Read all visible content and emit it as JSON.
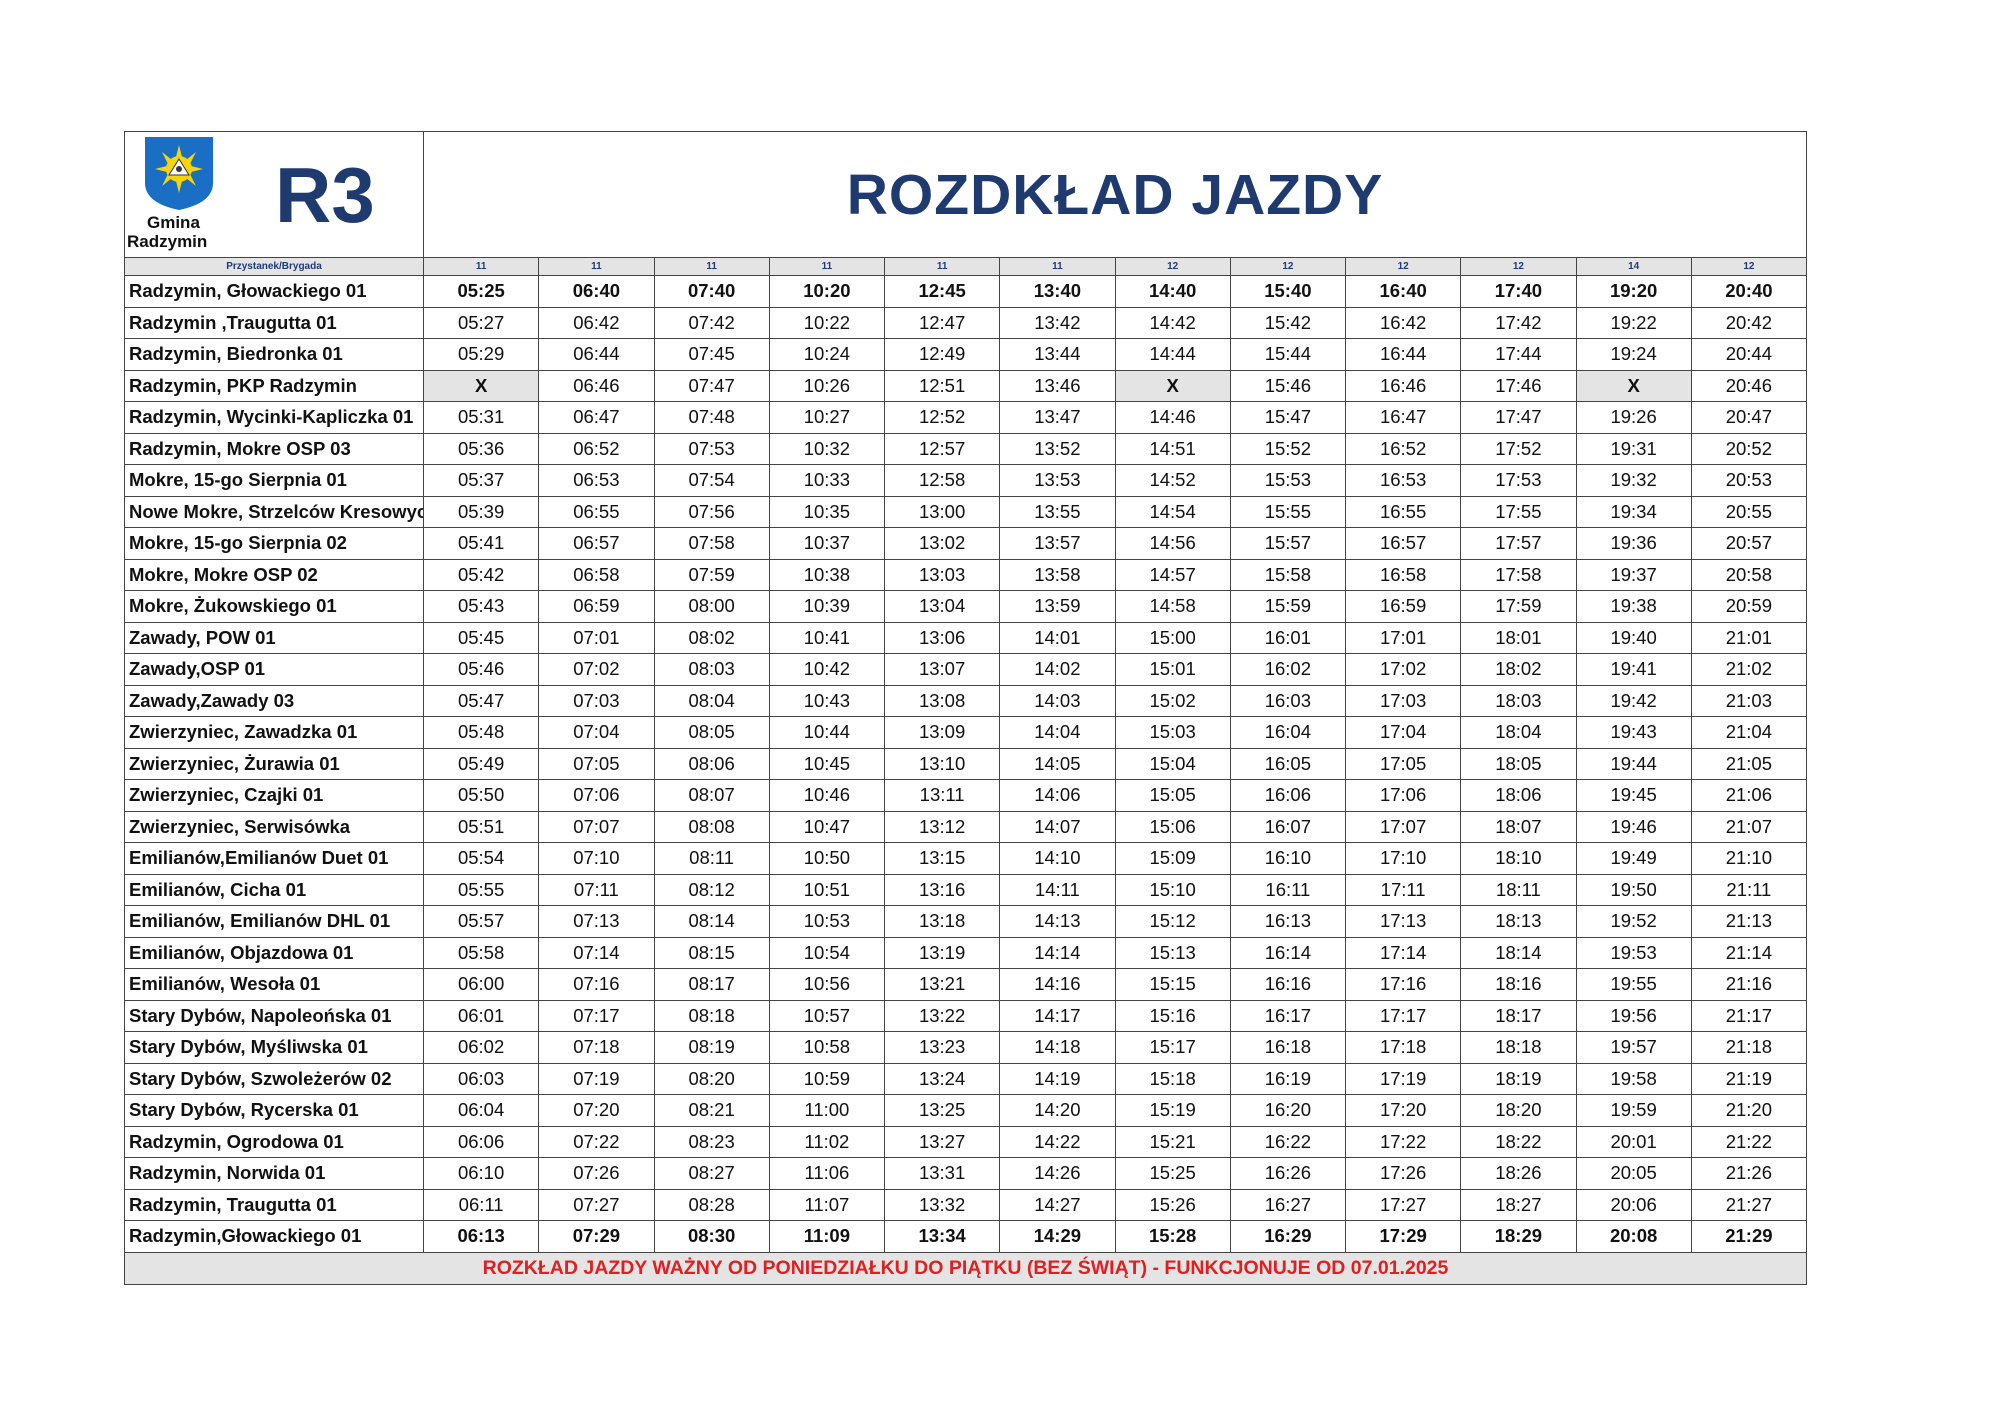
{
  "logo": {
    "line1": "Gmina",
    "line2": "Radzymin"
  },
  "route": "R3",
  "title": "ROZDKŁAD JAZDY",
  "table": {
    "header": "Przystanek/Brygada",
    "brigades": [
      "11",
      "11",
      "11",
      "11",
      "11",
      "11",
      "12",
      "12",
      "12",
      "12",
      "14",
      "12"
    ],
    "rows": [
      {
        "stop": "Radzymin, Głowackiego 01",
        "times": [
          "05:25",
          "06:40",
          "07:40",
          "10:20",
          "12:45",
          "13:40",
          "14:40",
          "15:40",
          "16:40",
          "17:40",
          "19:20",
          "20:40"
        ]
      },
      {
        "stop": "Radzymin ,Traugutta 01",
        "times": [
          "05:27",
          "06:42",
          "07:42",
          "10:22",
          "12:47",
          "13:42",
          "14:42",
          "15:42",
          "16:42",
          "17:42",
          "19:22",
          "20:42"
        ]
      },
      {
        "stop": "Radzymin, Biedronka 01",
        "times": [
          "05:29",
          "06:44",
          "07:45",
          "10:24",
          "12:49",
          "13:44",
          "14:44",
          "15:44",
          "16:44",
          "17:44",
          "19:24",
          "20:44"
        ]
      },
      {
        "stop": "Radzymin, PKP Radzymin",
        "times": [
          "X",
          "06:46",
          "07:47",
          "10:26",
          "12:51",
          "13:46",
          "X",
          "15:46",
          "16:46",
          "17:46",
          "X",
          "20:46"
        ]
      },
      {
        "stop": "Radzymin, Wycinki-Kapliczka 01",
        "times": [
          "05:31",
          "06:47",
          "07:48",
          "10:27",
          "12:52",
          "13:47",
          "14:46",
          "15:47",
          "16:47",
          "17:47",
          "19:26",
          "20:47"
        ]
      },
      {
        "stop": "Radzymin, Mokre OSP 03",
        "times": [
          "05:36",
          "06:52",
          "07:53",
          "10:32",
          "12:57",
          "13:52",
          "14:51",
          "15:52",
          "16:52",
          "17:52",
          "19:31",
          "20:52"
        ]
      },
      {
        "stop": "Mokre, 15-go Sierpnia 01",
        "times": [
          "05:37",
          "06:53",
          "07:54",
          "10:33",
          "12:58",
          "13:53",
          "14:52",
          "15:53",
          "16:53",
          "17:53",
          "19:32",
          "20:53"
        ]
      },
      {
        "stop": "Nowe Mokre, Strzelców Kresowyc",
        "times": [
          "05:39",
          "06:55",
          "07:56",
          "10:35",
          "13:00",
          "13:55",
          "14:54",
          "15:55",
          "16:55",
          "17:55",
          "19:34",
          "20:55"
        ]
      },
      {
        "stop": "Mokre, 15-go Sierpnia 02",
        "times": [
          "05:41",
          "06:57",
          "07:58",
          "10:37",
          "13:02",
          "13:57",
          "14:56",
          "15:57",
          "16:57",
          "17:57",
          "19:36",
          "20:57"
        ]
      },
      {
        "stop": "Mokre, Mokre OSP 02",
        "times": [
          "05:42",
          "06:58",
          "07:59",
          "10:38",
          "13:03",
          "13:58",
          "14:57",
          "15:58",
          "16:58",
          "17:58",
          "19:37",
          "20:58"
        ]
      },
      {
        "stop": "Mokre, Żukowskiego 01",
        "times": [
          "05:43",
          "06:59",
          "08:00",
          "10:39",
          "13:04",
          "13:59",
          "14:58",
          "15:59",
          "16:59",
          "17:59",
          "19:38",
          "20:59"
        ]
      },
      {
        "stop": "Zawady, POW 01",
        "times": [
          "05:45",
          "07:01",
          "08:02",
          "10:41",
          "13:06",
          "14:01",
          "15:00",
          "16:01",
          "17:01",
          "18:01",
          "19:40",
          "21:01"
        ]
      },
      {
        "stop": "Zawady,OSP 01",
        "times": [
          "05:46",
          "07:02",
          "08:03",
          "10:42",
          "13:07",
          "14:02",
          "15:01",
          "16:02",
          "17:02",
          "18:02",
          "19:41",
          "21:02"
        ]
      },
      {
        "stop": "Zawady,Zawady 03",
        "times": [
          "05:47",
          "07:03",
          "08:04",
          "10:43",
          "13:08",
          "14:03",
          "15:02",
          "16:03",
          "17:03",
          "18:03",
          "19:42",
          "21:03"
        ]
      },
      {
        "stop": "Zwierzyniec, Zawadzka 01",
        "times": [
          "05:48",
          "07:04",
          "08:05",
          "10:44",
          "13:09",
          "14:04",
          "15:03",
          "16:04",
          "17:04",
          "18:04",
          "19:43",
          "21:04"
        ]
      },
      {
        "stop": "Zwierzyniec, Żurawia 01",
        "times": [
          "05:49",
          "07:05",
          "08:06",
          "10:45",
          "13:10",
          "14:05",
          "15:04",
          "16:05",
          "17:05",
          "18:05",
          "19:44",
          "21:05"
        ]
      },
      {
        "stop": "Zwierzyniec, Czajki 01",
        "times": [
          "05:50",
          "07:06",
          "08:07",
          "10:46",
          "13:11",
          "14:06",
          "15:05",
          "16:06",
          "17:06",
          "18:06",
          "19:45",
          "21:06"
        ]
      },
      {
        "stop": "Zwierzyniec, Serwisówka",
        "times": [
          "05:51",
          "07:07",
          "08:08",
          "10:47",
          "13:12",
          "14:07",
          "15:06",
          "16:07",
          "17:07",
          "18:07",
          "19:46",
          "21:07"
        ]
      },
      {
        "stop": "Emilianów,Emilianów Duet 01",
        "times": [
          "05:54",
          "07:10",
          "08:11",
          "10:50",
          "13:15",
          "14:10",
          "15:09",
          "16:10",
          "17:10",
          "18:10",
          "19:49",
          "21:10"
        ]
      },
      {
        "stop": "Emilianów, Cicha 01",
        "times": [
          "05:55",
          "07:11",
          "08:12",
          "10:51",
          "13:16",
          "14:11",
          "15:10",
          "16:11",
          "17:11",
          "18:11",
          "19:50",
          "21:11"
        ]
      },
      {
        "stop": "Emilianów, Emilianów DHL 01",
        "times": [
          "05:57",
          "07:13",
          "08:14",
          "10:53",
          "13:18",
          "14:13",
          "15:12",
          "16:13",
          "17:13",
          "18:13",
          "19:52",
          "21:13"
        ]
      },
      {
        "stop": "Emilianów, Objazdowa 01",
        "times": [
          "05:58",
          "07:14",
          "08:15",
          "10:54",
          "13:19",
          "14:14",
          "15:13",
          "16:14",
          "17:14",
          "18:14",
          "19:53",
          "21:14"
        ]
      },
      {
        "stop": "Emilianów, Wesoła 01",
        "times": [
          "06:00",
          "07:16",
          "08:17",
          "10:56",
          "13:21",
          "14:16",
          "15:15",
          "16:16",
          "17:16",
          "18:16",
          "19:55",
          "21:16"
        ]
      },
      {
        "stop": "Stary Dybów, Napoleońska 01",
        "times": [
          "06:01",
          "07:17",
          "08:18",
          "10:57",
          "13:22",
          "14:17",
          "15:16",
          "16:17",
          "17:17",
          "18:17",
          "19:56",
          "21:17"
        ]
      },
      {
        "stop": "Stary Dybów, Myśliwska 01",
        "times": [
          "06:02",
          "07:18",
          "08:19",
          "10:58",
          "13:23",
          "14:18",
          "15:17",
          "16:18",
          "17:18",
          "18:18",
          "19:57",
          "21:18"
        ]
      },
      {
        "stop": "Stary Dybów, Szwoleżerów  02",
        "times": [
          "06:03",
          "07:19",
          "08:20",
          "10:59",
          "13:24",
          "14:19",
          "15:18",
          "16:19",
          "17:19",
          "18:19",
          "19:58",
          "21:19"
        ]
      },
      {
        "stop": "Stary Dybów, Rycerska 01",
        "times": [
          "06:04",
          "07:20",
          "08:21",
          "11:00",
          "13:25",
          "14:20",
          "15:19",
          "16:20",
          "17:20",
          "18:20",
          "19:59",
          "21:20"
        ]
      },
      {
        "stop": "Radzymin, Ogrodowa 01",
        "times": [
          "06:06",
          "07:22",
          "08:23",
          "11:02",
          "13:27",
          "14:22",
          "15:21",
          "16:22",
          "17:22",
          "18:22",
          "20:01",
          "21:22"
        ]
      },
      {
        "stop": "Radzymin, Norwida 01",
        "times": [
          "06:10",
          "07:26",
          "08:27",
          "11:06",
          "13:31",
          "14:26",
          "15:25",
          "16:26",
          "17:26",
          "18:26",
          "20:05",
          "21:26"
        ]
      },
      {
        "stop": "Radzymin, Traugutta 01",
        "times": [
          "06:11",
          "07:27",
          "08:28",
          "11:07",
          "13:32",
          "14:27",
          "15:26",
          "16:27",
          "17:27",
          "18:27",
          "20:06",
          "21:27"
        ]
      },
      {
        "stop": "Radzymin,Głowackiego 01",
        "times": [
          "06:13",
          "07:29",
          "08:30",
          "11:09",
          "13:34",
          "14:29",
          "15:28",
          "16:29",
          "17:29",
          "18:29",
          "20:08",
          "21:29"
        ]
      }
    ]
  },
  "footer": "ROZKŁAD JAZDY WAŻNY OD PONIEDZIAŁKU DO PIĄTKU (BEZ ŚWIĄT) - FUNKCJONUJE OD 07.01.2025"
}
